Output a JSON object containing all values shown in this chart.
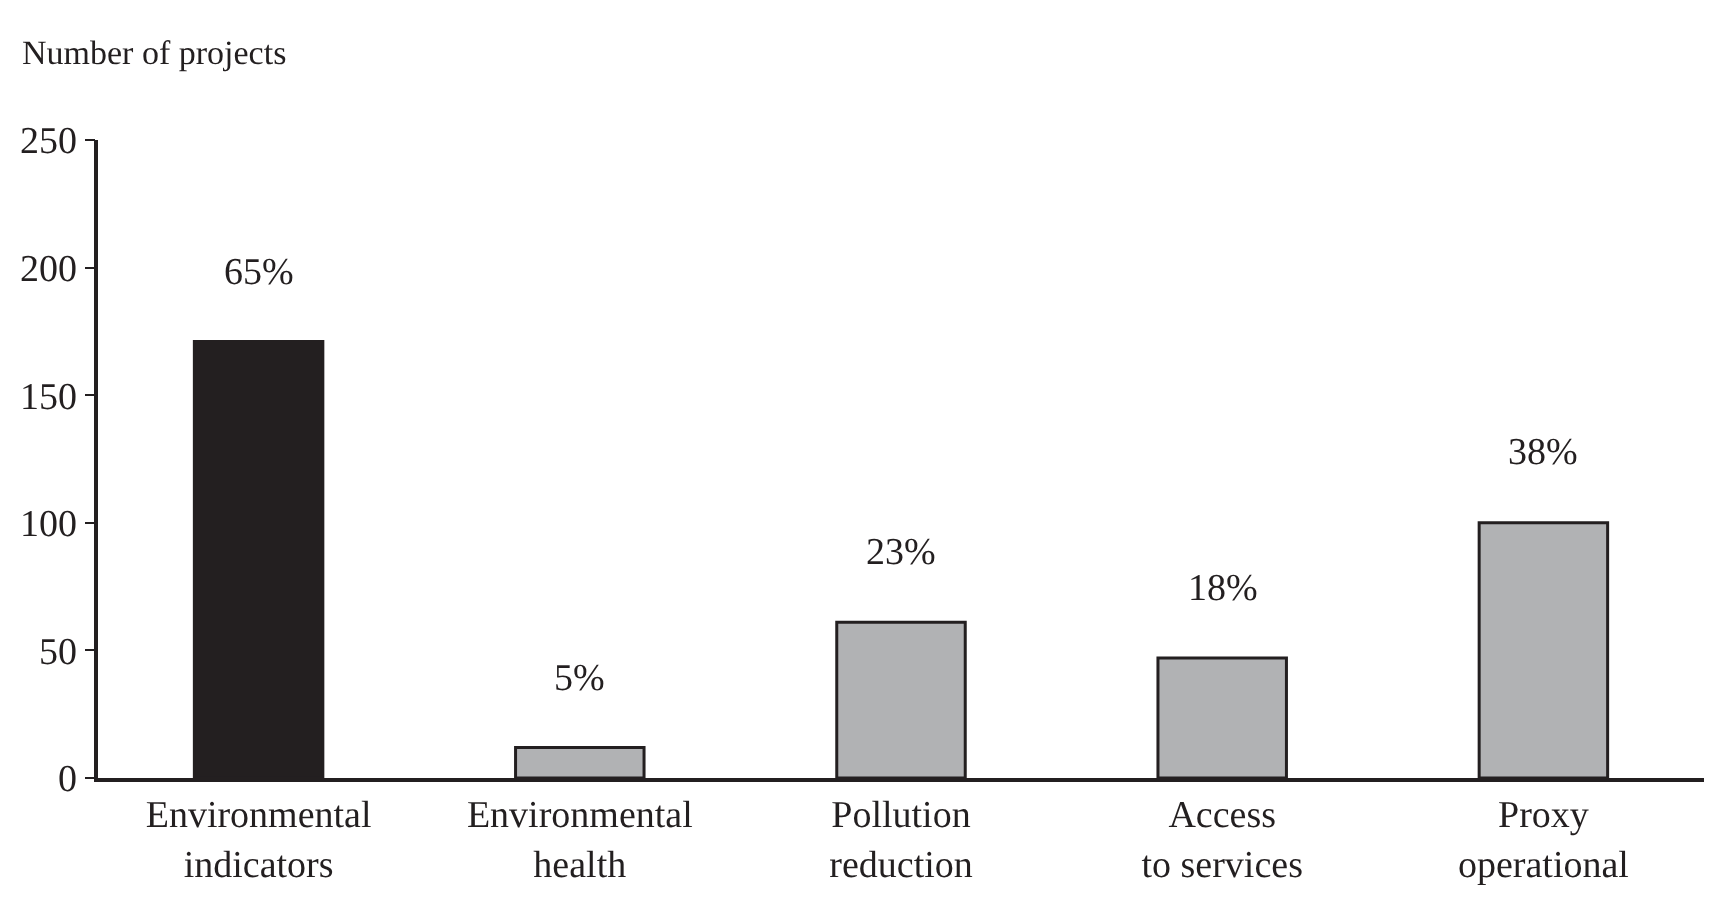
{
  "chart_data": {
    "type": "bar",
    "ylabel": "Number of projects",
    "categories": [
      "Environmental indicators",
      "Environmental health",
      "Pollution reduction",
      "Access to services",
      "Proxy operational"
    ],
    "values": [
      171,
      12,
      61,
      47,
      100
    ],
    "colors": [
      "#231f20",
      "#b1b2b4",
      "#b1b2b4",
      "#b1b2b4",
      "#b1b2b4"
    ],
    "annotations": [
      {
        "text": "65%",
        "x": "Environmental indicators",
        "y": 171
      },
      {
        "text": "5%",
        "x": "Environmental health",
        "y": 12
      },
      {
        "text": "23%",
        "x": "Pollution reduction",
        "y": 61
      },
      {
        "text": "18%",
        "x": "Access to services",
        "y": 47
      },
      {
        "text": "38%",
        "x": "Proxy operational",
        "y": 100
      }
    ],
    "ylim": [
      0,
      250
    ],
    "yticks": [
      0,
      50,
      100,
      150,
      200,
      250
    ],
    "legend": false
  }
}
